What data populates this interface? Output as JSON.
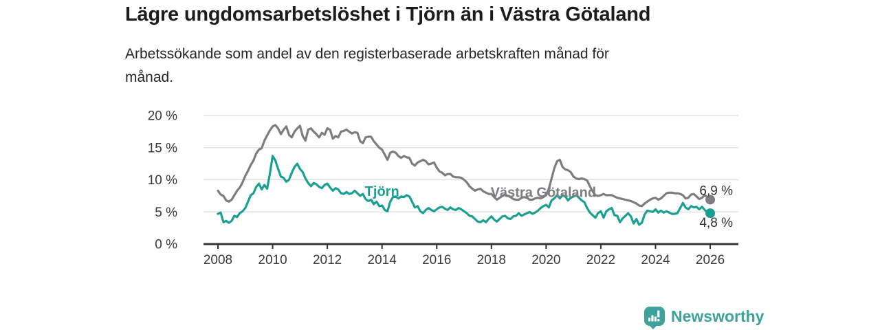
{
  "header": {
    "title": "Lägre ungdomsarbetslöshet i Tjörn än i Västra Götaland",
    "subtitle": "Arbetssökande som andel av den registerbaserade arbetskraften månad för månad."
  },
  "branding": {
    "logo_text": "Newsworthy",
    "logo_color": "#3da29c"
  },
  "chart_data": {
    "type": "line",
    "title": "Lägre ungdomsarbetslöshet i Tjörn än i Västra Götaland",
    "xlabel": "",
    "ylabel": "",
    "x_range": [
      2008,
      2026
    ],
    "ylim": [
      0,
      20
    ],
    "grid": "horizontal",
    "grid_color": "#dcdcdc",
    "axis_color": "#333333",
    "tick_color": "#3a3a3a",
    "y_ticks": [
      {
        "value": 0,
        "label": "0 %"
      },
      {
        "value": 5,
        "label": "5 %"
      },
      {
        "value": 10,
        "label": "10 %"
      },
      {
        "value": 15,
        "label": "15 %"
      },
      {
        "value": 20,
        "label": "20 %"
      }
    ],
    "x_ticks": [
      {
        "value": 2008,
        "label": "2008"
      },
      {
        "value": 2010,
        "label": "2010"
      },
      {
        "value": 2012,
        "label": "2012"
      },
      {
        "value": 2014,
        "label": "2014"
      },
      {
        "value": 2016,
        "label": "2016"
      },
      {
        "value": 2018,
        "label": "2018"
      },
      {
        "value": 2020,
        "label": "2020"
      },
      {
        "value": 2022,
        "label": "2022"
      },
      {
        "value": 2024,
        "label": "2024"
      },
      {
        "value": 2026,
        "label": "2026"
      }
    ],
    "series": [
      {
        "id": "vastra-gotaland",
        "name": "Västra Götaland",
        "color": "#7d7d81",
        "start": 2008,
        "step": 0.1,
        "end_value": 6.9,
        "end_label": "6,9 %",
        "end_label_position": "above",
        "inline_label": {
          "text": "Västra Götaland",
          "x": 2019.9,
          "y": 7.3
        },
        "values": [
          8.3,
          7.7,
          7.5,
          6.8,
          6.6,
          6.9,
          7.6,
          8.3,
          8.8,
          9.6,
          10.6,
          11.4,
          12.3,
          13.0,
          14.1,
          14.7,
          14.9,
          16.1,
          16.9,
          17.7,
          18.3,
          18.5,
          18.0,
          17.1,
          17.8,
          18.3,
          17.0,
          16.6,
          17.5,
          18.0,
          18.4,
          16.8,
          16.1,
          17.8,
          18.0,
          17.5,
          17.1,
          16.6,
          17.3,
          17.0,
          18.0,
          17.8,
          16.4,
          16.8,
          16.6,
          17.5,
          17.6,
          17.8,
          17.5,
          17.2,
          17.4,
          17.3,
          16.0,
          15.7,
          16.6,
          16.7,
          16.7,
          16.0,
          15.5,
          15.0,
          14.7,
          13.9,
          13.1,
          14.2,
          14.4,
          14.2,
          13.7,
          13.4,
          13.7,
          13.5,
          13.4,
          12.5,
          12.2,
          12.7,
          12.9,
          13.1,
          12.9,
          12.4,
          12.5,
          12.7,
          11.9,
          11.3,
          11.1,
          10.7,
          10.9,
          10.9,
          10.5,
          10.4,
          10.4,
          10.3,
          10.0,
          9.6,
          9.0,
          8.6,
          8.3,
          8.5,
          8.6,
          8.2,
          8.0,
          7.8,
          7.8,
          7.3,
          6.9,
          7.2,
          7.5,
          7.7,
          7.5,
          7.3,
          7.0,
          6.9,
          6.9,
          7.2,
          7.3,
          7.2,
          6.9,
          6.9,
          7.1,
          7.2,
          7.1,
          7.3,
          7.6,
          8.6,
          10.2,
          11.8,
          12.9,
          13.1,
          12.0,
          11.6,
          11.5,
          11.2,
          10.5,
          10.2,
          10.1,
          10.2,
          10.1,
          9.9,
          9.0,
          8.2,
          7.6,
          7.5,
          7.6,
          7.8,
          7.6,
          7.6,
          7.6,
          7.4,
          7.2,
          7.1,
          7.0,
          6.9,
          6.8,
          6.7,
          6.5,
          6.3,
          6.0,
          5.9,
          6.3,
          6.6,
          6.9,
          7.1,
          7.2,
          6.9,
          7.1,
          7.5,
          7.9,
          8.0,
          8.0,
          7.9,
          7.9,
          7.8,
          7.6,
          7.1,
          7.2,
          7.7,
          7.8,
          7.4,
          7.0,
          7.2,
          7.6,
          7.3,
          6.9
        ]
      },
      {
        "id": "tjorn",
        "name": "Tjörn",
        "color": "#1aa092",
        "start": 2008,
        "step": 0.1,
        "end_value": 4.8,
        "end_label": "4,8 %",
        "end_label_position": "below",
        "inline_label": {
          "text": "Tjörn",
          "x": 2014.0,
          "y": 7.5
        },
        "values": [
          4.7,
          4.9,
          3.4,
          3.6,
          3.3,
          3.6,
          4.4,
          4.2,
          4.8,
          5.1,
          5.6,
          6.6,
          7.6,
          7.9,
          8.9,
          9.4,
          8.5,
          9.2,
          8.6,
          11.0,
          13.7,
          13.0,
          11.7,
          10.5,
          10.3,
          9.7,
          10.0,
          11.1,
          12.0,
          12.5,
          11.7,
          11.2,
          10.2,
          9.5,
          9.0,
          9.5,
          9.3,
          8.9,
          8.7,
          9.2,
          9.4,
          8.8,
          8.3,
          8.7,
          8.5,
          7.9,
          7.8,
          8.1,
          7.8,
          7.9,
          8.3,
          7.9,
          7.5,
          7.8,
          7.0,
          6.7,
          6.9,
          6.2,
          6.6,
          5.9,
          6.0,
          5.3,
          5.1,
          6.6,
          7.3,
          7.4,
          7.1,
          7.4,
          7.3,
          7.6,
          7.4,
          6.6,
          5.7,
          5.9,
          5.1,
          4.8,
          5.3,
          5.6,
          5.3,
          5.1,
          5.4,
          5.7,
          5.8,
          5.5,
          5.3,
          5.7,
          5.4,
          5.3,
          5.6,
          5.4,
          5.1,
          4.8,
          4.4,
          4.3,
          3.9,
          3.5,
          3.4,
          3.7,
          3.4,
          3.9,
          4.3,
          3.8,
          3.5,
          3.9,
          4.3,
          4.4,
          4.0,
          3.9,
          4.3,
          4.4,
          4.8,
          4.4,
          4.6,
          4.8,
          5.0,
          4.7,
          4.9,
          5.2,
          5.6,
          5.9,
          6.1,
          5.7,
          6.8,
          7.1,
          7.6,
          7.1,
          7.6,
          7.4,
          6.8,
          7.2,
          7.4,
          7.6,
          7.2,
          6.8,
          6.5,
          5.6,
          4.9,
          4.5,
          4.1,
          4.8,
          5.1,
          4.1,
          5.1,
          5.4,
          5.6,
          4.5,
          4.4,
          3.4,
          4.0,
          4.4,
          4.8,
          4.3,
          3.2,
          3.9,
          3.0,
          3.3,
          4.6,
          5.2,
          5.1,
          5.0,
          5.4,
          4.9,
          5.2,
          4.9,
          5.1,
          4.9,
          4.7,
          4.7,
          4.8,
          5.6,
          6.4,
          5.7,
          5.4,
          5.9,
          5.7,
          5.8,
          5.4,
          5.8,
          5.3,
          5.0,
          4.8
        ]
      }
    ]
  }
}
